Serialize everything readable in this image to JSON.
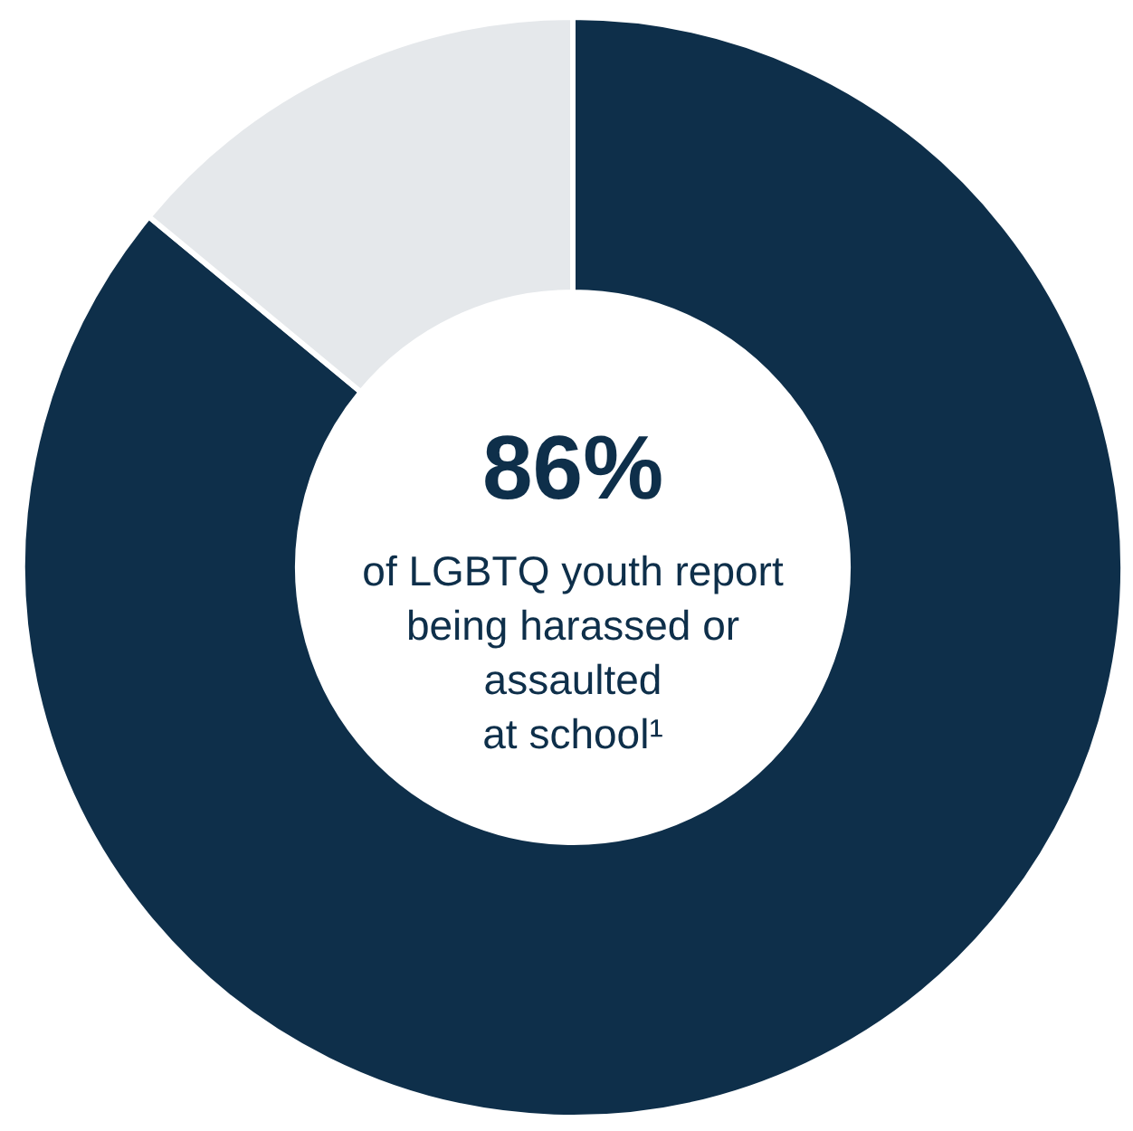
{
  "chart_data": {
    "type": "donut",
    "categories": [
      null,
      null
    ],
    "values": [
      86,
      14
    ],
    "colors": [
      "#0e2f4a",
      "#e5e8eb"
    ],
    "annotations": [
      "86%",
      "of LGBTQ youth report\nbeing harassed or\nassaulted\nat school¹"
    ]
  }
}
